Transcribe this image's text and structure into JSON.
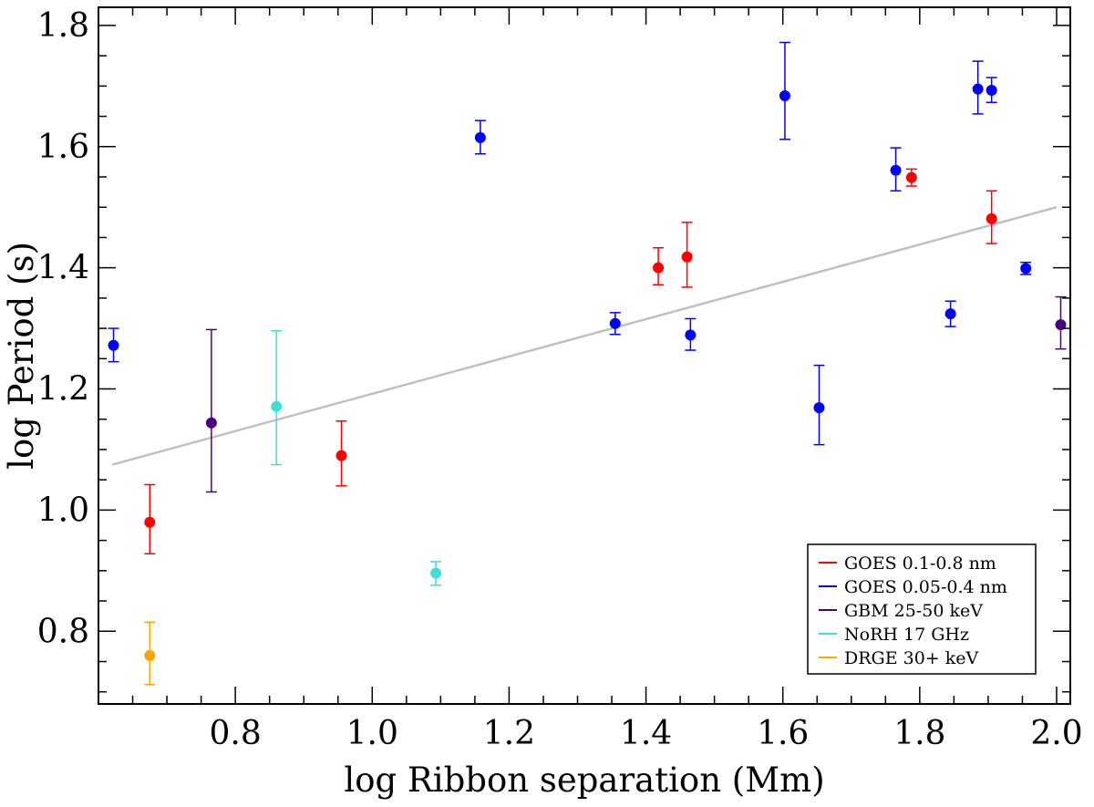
{
  "chart_data": {
    "type": "scatter",
    "xlabel": "log Ribbon separation (Mm)",
    "ylabel": "log Period (s)",
    "xlim": [
      0.6,
      2.02
    ],
    "ylim": [
      0.68,
      1.83
    ],
    "xticks": [
      0.8,
      1.0,
      1.2,
      1.4,
      1.6,
      1.8,
      2.0
    ],
    "xtick_labels": [
      "0.8",
      "1.0",
      "1.2",
      "1.4",
      "1.6",
      "1.8",
      "2.0"
    ],
    "yticks": [
      0.8,
      1.0,
      1.2,
      1.4,
      1.6,
      1.8
    ],
    "ytick_labels": [
      "0.8",
      "1.0",
      "1.2",
      "1.4",
      "1.6",
      "1.8"
    ],
    "x_minor_step": 0.05,
    "y_minor_step": 0.05,
    "grid": false,
    "legend_position": "bottom-right",
    "fit_line": {
      "x": [
        0.62,
        2.0
      ],
      "y": [
        1.075,
        1.5
      ],
      "color": "#c0c0c0"
    },
    "series": [
      {
        "name": "GOES 0.1-0.8 nm",
        "color": "#ff0000",
        "points": [
          {
            "x": 0.675,
            "y": 0.98,
            "lo": 0.928,
            "hi": 1.042
          },
          {
            "x": 0.955,
            "y": 1.09,
            "lo": 1.04,
            "hi": 1.147
          },
          {
            "x": 1.418,
            "y": 1.4,
            "lo": 1.372,
            "hi": 1.433
          },
          {
            "x": 1.46,
            "y": 1.418,
            "lo": 1.368,
            "hi": 1.475
          },
          {
            "x": 1.788,
            "y": 1.549,
            "lo": 1.535,
            "hi": 1.563
          },
          {
            "x": 1.905,
            "y": 1.481,
            "lo": 1.44,
            "hi": 1.527
          }
        ]
      },
      {
        "name": "GOES 0.05-0.4 nm",
        "color": "#0000ff",
        "points": [
          {
            "x": 0.622,
            "y": 1.272,
            "lo": 1.245,
            "hi": 1.3
          },
          {
            "x": 1.158,
            "y": 1.615,
            "lo": 1.588,
            "hi": 1.643
          },
          {
            "x": 1.355,
            "y": 1.308,
            "lo": 1.29,
            "hi": 1.326
          },
          {
            "x": 1.465,
            "y": 1.289,
            "lo": 1.264,
            "hi": 1.316
          },
          {
            "x": 1.603,
            "y": 1.684,
            "lo": 1.612,
            "hi": 1.772
          },
          {
            "x": 1.653,
            "y": 1.169,
            "lo": 1.108,
            "hi": 1.239
          },
          {
            "x": 1.765,
            "y": 1.561,
            "lo": 1.527,
            "hi": 1.598
          },
          {
            "x": 1.845,
            "y": 1.324,
            "lo": 1.303,
            "hi": 1.345
          },
          {
            "x": 1.885,
            "y": 1.695,
            "lo": 1.654,
            "hi": 1.741
          },
          {
            "x": 1.905,
            "y": 1.693,
            "lo": 1.673,
            "hi": 1.714
          },
          {
            "x": 1.955,
            "y": 1.399,
            "lo": 1.389,
            "hi": 1.409
          }
        ]
      },
      {
        "name": "GBM 25-50 keV",
        "color": "#4b0082",
        "points": [
          {
            "x": 0.765,
            "y": 1.144,
            "lo": 1.03,
            "hi": 1.298
          },
          {
            "x": 2.006,
            "y": 1.306,
            "lo": 1.266,
            "hi": 1.352
          }
        ]
      },
      {
        "name": "NoRH 17 GHz",
        "color": "#40e0d0",
        "points": [
          {
            "x": 0.86,
            "y": 1.171,
            "lo": 1.075,
            "hi": 1.296
          },
          {
            "x": 1.093,
            "y": 0.896,
            "lo": 0.876,
            "hi": 0.915
          }
        ]
      },
      {
        "name": "DRGE 30+ keV",
        "color": "#ffa500",
        "points": [
          {
            "x": 0.675,
            "y": 0.76,
            "lo": 0.712,
            "hi": 0.815
          }
        ]
      }
    ]
  }
}
